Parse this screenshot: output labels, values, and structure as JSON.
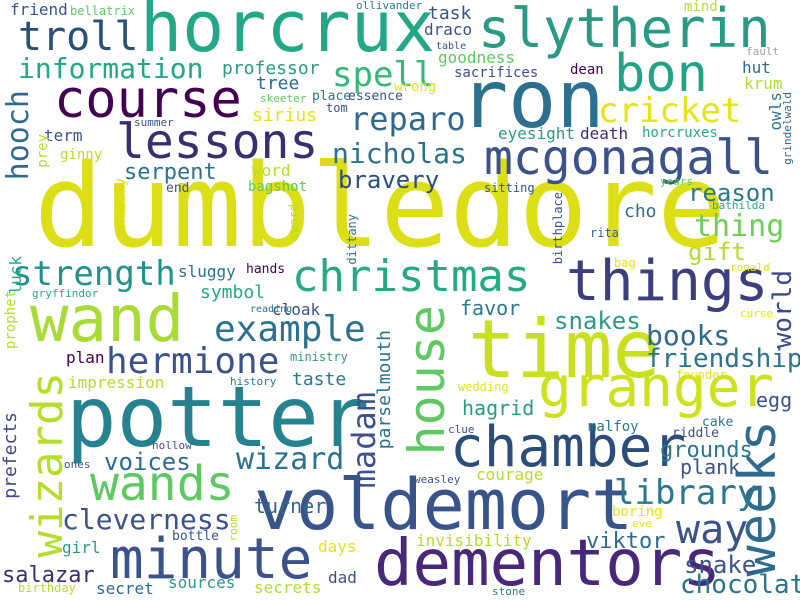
{
  "palette": {
    "dark_purple": "#440154",
    "indigo": "#3b528b",
    "blue": "#31688e",
    "teal": "#21918c",
    "green": "#35b779",
    "light_green": "#6ece58",
    "lime": "#b5de2b",
    "yellow": "#e5e419",
    "background": "#ffffff"
  },
  "words": [
    {
      "text": "dumbledore",
      "color": "#dddf16"
    },
    {
      "text": "horcrux",
      "color": "#22a884"
    },
    {
      "text": "slytherin",
      "color": "#2a9a85"
    },
    {
      "text": "ron",
      "color": "#2d6f8e"
    },
    {
      "text": "troll",
      "color": "#2a4f7a"
    },
    {
      "text": "course",
      "color": "#440154"
    },
    {
      "text": "bon",
      "color": "#20a386"
    },
    {
      "text": "information",
      "color": "#22a884"
    },
    {
      "text": "spell",
      "color": "#35b779"
    },
    {
      "text": "lessons",
      "color": "#3a2f6e"
    },
    {
      "text": "mcgonagall",
      "color": "#3b528b"
    },
    {
      "text": "cricket",
      "color": "#e5e419"
    },
    {
      "text": "reparo",
      "color": "#31688e"
    },
    {
      "text": "nicholas",
      "color": "#2c728e"
    },
    {
      "text": "hooch",
      "color": "#2f6b8e"
    },
    {
      "text": "bravery",
      "color": "#2a4f7a"
    },
    {
      "text": "serpent",
      "color": "#2c728e"
    },
    {
      "text": "things",
      "color": "#3b3f7e"
    },
    {
      "text": "thing",
      "color": "#6ece58"
    },
    {
      "text": "reason",
      "color": "#2a788e"
    },
    {
      "text": "gift",
      "color": "#b5de2b"
    },
    {
      "text": "christmas",
      "color": "#25ab82"
    },
    {
      "text": "strength",
      "color": "#21918c"
    },
    {
      "text": "wand",
      "color": "#a8db34"
    },
    {
      "text": "example",
      "color": "#2c728e"
    },
    {
      "text": "time",
      "color": "#c8e020"
    },
    {
      "text": "house",
      "color": "#5ec962"
    },
    {
      "text": "hermione",
      "color": "#3b528b"
    },
    {
      "text": "granger",
      "color": "#cde11d"
    },
    {
      "text": "potter",
      "color": "#26828e"
    },
    {
      "text": "wizards",
      "color": "#b5de2b"
    },
    {
      "text": "chamber",
      "color": "#2c4c7a"
    },
    {
      "text": "weeks",
      "color": "#2f6b8e"
    },
    {
      "text": "voldemort",
      "color": "#38548a"
    },
    {
      "text": "wands",
      "color": "#5ec962"
    },
    {
      "text": "madam",
      "color": "#3b528b"
    },
    {
      "text": "wizard",
      "color": "#2c728e"
    },
    {
      "text": "library",
      "color": "#2a788e"
    },
    {
      "text": "friendship",
      "color": "#2c728e"
    },
    {
      "text": "books",
      "color": "#31688e"
    },
    {
      "text": "minute",
      "color": "#3b528b"
    },
    {
      "text": "dementors",
      "color": "#482878"
    },
    {
      "text": "way",
      "color": "#3b528b"
    },
    {
      "text": "cleverness",
      "color": "#3b528b"
    },
    {
      "text": "world",
      "color": "#3e4989"
    },
    {
      "text": "chocolate",
      "color": "#2c728e"
    },
    {
      "text": "snakes",
      "color": "#2a9a85"
    },
    {
      "text": "snake",
      "color": "#3b528b"
    },
    {
      "text": "viktor",
      "color": "#2f6b8e"
    },
    {
      "text": "salazar",
      "color": "#3e2d70"
    },
    {
      "text": "voices",
      "color": "#2f6b8e"
    },
    {
      "text": "grounds",
      "color": "#2a788e"
    },
    {
      "text": "hagrid",
      "color": "#2a9a85"
    },
    {
      "text": "plank",
      "color": "#3b528b"
    },
    {
      "text": "turner",
      "color": "#31688e"
    },
    {
      "text": "egg",
      "color": "#3b528b"
    },
    {
      "text": "favor",
      "color": "#2a788e"
    },
    {
      "text": "task",
      "color": "#3b528b"
    },
    {
      "text": "draco",
      "color": "#3b528b"
    },
    {
      "text": "goodness",
      "color": "#5ec962"
    },
    {
      "text": "sacrifices",
      "color": "#3b528b"
    },
    {
      "text": "professor",
      "color": "#2a9a85"
    },
    {
      "text": "tree",
      "color": "#2f6b8e"
    },
    {
      "text": "sirius",
      "color": "#e5e419"
    },
    {
      "text": "hut",
      "color": "#31688e"
    },
    {
      "text": "krum",
      "color": "#b5de2b"
    },
    {
      "text": "owls",
      "color": "#2a788e"
    },
    {
      "text": "dean",
      "color": "#440154"
    },
    {
      "text": "mind",
      "color": "#b5de2b"
    },
    {
      "text": "fault",
      "color": "#a0a0a0"
    },
    {
      "text": "grindelwald",
      "color": "#31688e"
    },
    {
      "text": "eyesight",
      "color": "#2a9a85"
    },
    {
      "text": "death",
      "color": "#482878"
    },
    {
      "text": "horcruxes",
      "color": "#25ab82"
    },
    {
      "text": "place",
      "color": "#2c728e"
    },
    {
      "text": "essence",
      "color": "#3b528b"
    },
    {
      "text": "wrong",
      "color": "#e5e419"
    },
    {
      "text": "tom",
      "color": "#3b528b"
    },
    {
      "text": "skeeter",
      "color": "#5ec962"
    },
    {
      "text": "summer",
      "color": "#3b528b"
    },
    {
      "text": "term",
      "color": "#3b528b"
    },
    {
      "text": "prey",
      "color": "#b5de2b"
    },
    {
      "text": "ginny",
      "color": "#b5de2b"
    },
    {
      "text": "end",
      "color": "#3b528b"
    },
    {
      "text": "word",
      "color": "#b5de2b"
    },
    {
      "text": "bagshot",
      "color": "#5ec962"
    },
    {
      "text": "diary",
      "color": "#e5e419"
    },
    {
      "text": "sword",
      "color": "#b5de2b"
    },
    {
      "text": "dittany",
      "color": "#2a788e"
    },
    {
      "text": "sitting",
      "color": "#3b528b"
    },
    {
      "text": "birthplace",
      "color": "#3b528b"
    },
    {
      "text": "years",
      "color": "#5ec962"
    },
    {
      "text": "bathilda",
      "color": "#25ab82"
    },
    {
      "text": "cho",
      "color": "#2f6b8e"
    },
    {
      "text": "rita",
      "color": "#31688e"
    },
    {
      "text": "luck",
      "color": "#25ab82"
    },
    {
      "text": "sluggy",
      "color": "#2c728e"
    },
    {
      "text": "hands",
      "color": "#440154"
    },
    {
      "text": "symbol",
      "color": "#25ab82"
    },
    {
      "text": "cloak",
      "color": "#3b528b"
    },
    {
      "text": "reading",
      "color": "#2c728e"
    },
    {
      "text": "prophet",
      "color": "#b5de2b"
    },
    {
      "text": "gryffindor",
      "color": "#25ab82"
    },
    {
      "text": "bag",
      "color": "#e5e419"
    },
    {
      "text": "ronald",
      "color": "#e5e419"
    },
    {
      "text": "curse",
      "color": "#e5e419"
    },
    {
      "text": "plan",
      "color": "#440154"
    },
    {
      "text": "ministry",
      "color": "#2a9a85"
    },
    {
      "text": "parselmouth",
      "color": "#2c728e"
    },
    {
      "text": "taste",
      "color": "#2a788e"
    },
    {
      "text": "impression",
      "color": "#b5de2b"
    },
    {
      "text": "history",
      "color": "#2a788e"
    },
    {
      "text": "founder",
      "color": "#e5e419"
    },
    {
      "text": "wedding",
      "color": "#e5e419"
    },
    {
      "text": "cake",
      "color": "#2a788e"
    },
    {
      "text": "riddle",
      "color": "#3b528b"
    },
    {
      "text": "prefects",
      "color": "#3e4989"
    },
    {
      "text": "hollow",
      "color": "#3b528b"
    },
    {
      "text": "clue",
      "color": "#3b528b"
    },
    {
      "text": "malfoy",
      "color": "#2a788e"
    },
    {
      "text": "ones",
      "color": "#3b528b"
    },
    {
      "text": "courage",
      "color": "#b5de2b"
    },
    {
      "text": "weasley",
      "color": "#3b528b"
    },
    {
      "text": "boring",
      "color": "#e5e419"
    },
    {
      "text": "eve",
      "color": "#e5e419"
    },
    {
      "text": "room",
      "color": "#b5de2b"
    },
    {
      "text": "bottle",
      "color": "#3b528b"
    },
    {
      "text": "girl",
      "color": "#2a9a85"
    },
    {
      "text": "days",
      "color": "#e5e419"
    },
    {
      "text": "invisibility",
      "color": "#b5de2b"
    },
    {
      "text": "dad",
      "color": "#3b528b"
    },
    {
      "text": "sources",
      "color": "#2a9a85"
    },
    {
      "text": "secret",
      "color": "#2f6b8e"
    },
    {
      "text": "secrets",
      "color": "#b5de2b"
    },
    {
      "text": "birthday",
      "color": "#b5de2b"
    },
    {
      "text": "stone",
      "color": "#2a788e"
    },
    {
      "text": "friend",
      "color": "#3b528b"
    },
    {
      "text": "bellatrix",
      "color": "#5ec962"
    },
    {
      "text": "ollivander",
      "color": "#2a788e"
    },
    {
      "text": "table",
      "color": "#3b528b"
    }
  ]
}
